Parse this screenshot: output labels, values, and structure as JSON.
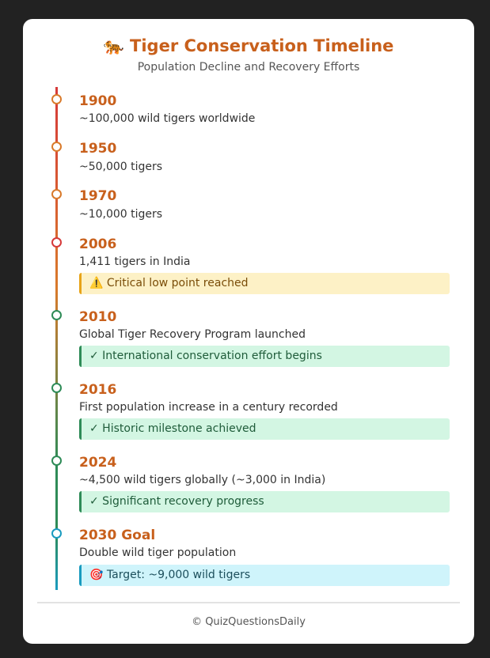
{
  "header": {
    "title": "🐅 Tiger Conservation Timeline",
    "subtitle": "Population Decline and Recovery Efforts"
  },
  "events": [
    {
      "year": "1900",
      "description": "~100,000 wild tigers worldwide"
    },
    {
      "year": "1950",
      "description": "~50,000 tigers"
    },
    {
      "year": "1970",
      "description": "~10,000 tigers"
    },
    {
      "year": "2006",
      "description": "1,411 tigers in India",
      "note": "⚠️ Critical low point reached"
    },
    {
      "year": "2010",
      "description": "Global Tiger Recovery Program launched",
      "note": "✓ International conservation effort begins"
    },
    {
      "year": "2016",
      "description": "First population increase in a century recorded",
      "note": "✓ Historic milestone achieved"
    },
    {
      "year": "2024",
      "description": "~4,500 wild tigers globally (~3,000 in India)",
      "note": "✓ Significant recovery progress"
    },
    {
      "year": "2030 Goal",
      "description": "Double wild tiger population",
      "note": "🎯 Target: ~9,000 wild tigers"
    }
  ],
  "footer": "© QuizQuestionsDaily"
}
